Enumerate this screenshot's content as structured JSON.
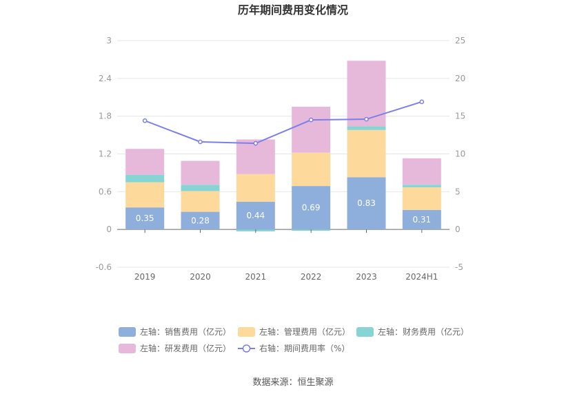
{
  "chart_data": {
    "type": "bar",
    "stacked": true,
    "title": "历年期间费用变化情况",
    "categories": [
      "2019",
      "2020",
      "2021",
      "2022",
      "2023",
      "2024H1"
    ],
    "left_axis": {
      "min": -0.6,
      "max": 3,
      "ticks": [
        "-0.6",
        "0",
        "0.6",
        "1.2",
        "1.8",
        "2.4",
        "3"
      ]
    },
    "right_axis": {
      "min": -5,
      "max": 25,
      "ticks": [
        "-5",
        "0",
        "5",
        "10",
        "15",
        "20",
        "25"
      ]
    },
    "series": [
      {
        "name": "左轴：销售费用（亿元）",
        "axis": "left",
        "color": "#8eaedc",
        "values": [
          0.35,
          0.28,
          0.44,
          0.69,
          0.83,
          0.31
        ],
        "labels": [
          "0.35",
          "0.28",
          "0.44",
          "0.69",
          "0.83",
          "0.31"
        ]
      },
      {
        "name": "左轴：管理费用（亿元）",
        "axis": "left",
        "color": "#fdd99b",
        "values": [
          0.4,
          0.33,
          0.44,
          0.53,
          0.75,
          0.36
        ]
      },
      {
        "name": "左轴：财务费用（亿元）",
        "axis": "left",
        "color": "#86d4d4",
        "values": [
          0.12,
          0.1,
          -0.03,
          -0.02,
          0.06,
          0.04
        ]
      },
      {
        "name": "左轴：研发费用（亿元）",
        "axis": "left",
        "color": "#e6b9db",
        "values": [
          0.41,
          0.38,
          0.55,
          0.73,
          1.04,
          0.42
        ]
      },
      {
        "name": "右轴：期间费用率（%）",
        "axis": "right",
        "type": "line",
        "color": "#7b7fe8",
        "values": [
          14.4,
          11.6,
          11.4,
          14.5,
          14.6,
          16.9
        ]
      }
    ],
    "source": "数据来源：恒生聚源"
  }
}
